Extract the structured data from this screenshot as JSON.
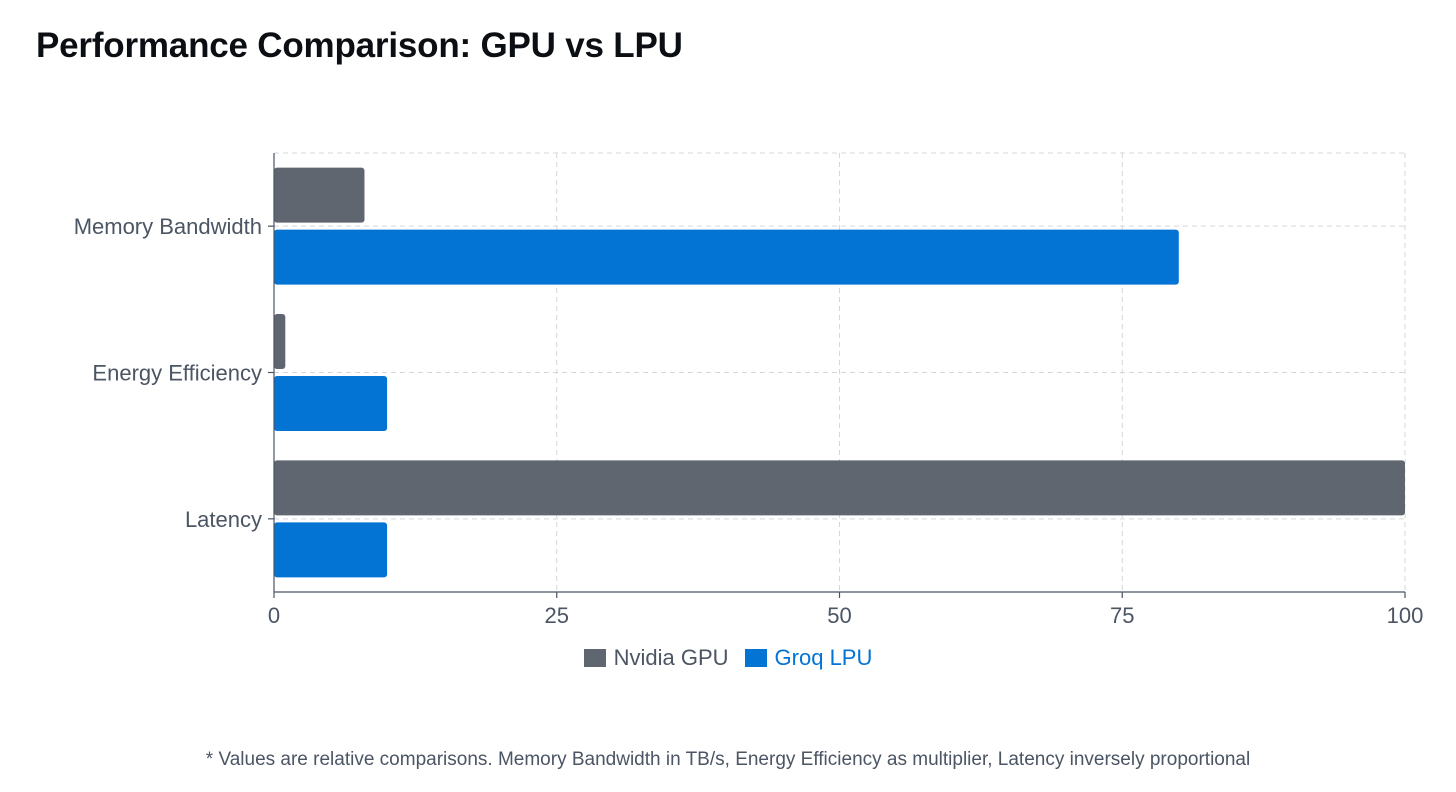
{
  "title": "Performance Comparison: GPU vs LPU",
  "chart_data": {
    "type": "bar",
    "orientation": "horizontal",
    "categories": [
      "Memory Bandwidth",
      "Energy Efficiency",
      "Latency"
    ],
    "series": [
      {
        "name": "Nvidia GPU",
        "color": "#5f6670",
        "values": [
          8,
          1,
          100
        ]
      },
      {
        "name": "Groq LPU",
        "color": "#0474d4",
        "values": [
          80,
          10,
          10
        ]
      }
    ],
    "xlim": [
      0,
      100
    ],
    "x_ticks": [
      "0",
      "25",
      "50",
      "75",
      "100"
    ],
    "grid": true,
    "legend_position": "bottom-center",
    "xlabel": "",
    "ylabel": ""
  },
  "footnote": "* Values are relative comparisons. Memory Bandwidth in TB/s, Energy Efficiency as multiplier, Latency inversely proportional"
}
